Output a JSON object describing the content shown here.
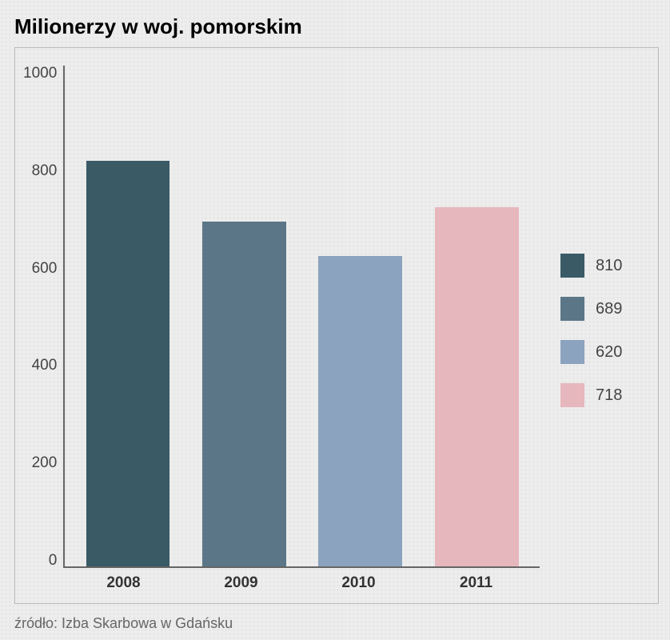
{
  "chart": {
    "type": "bar",
    "title": "Milionerzy w woj. pomorskim",
    "title_fontsize": 26,
    "categories": [
      "2008",
      "2009",
      "2010",
      "2011"
    ],
    "values": [
      810,
      689,
      620,
      718
    ],
    "bar_colors": [
      "#3a5a66",
      "#5b7687",
      "#8ba3be",
      "#e6b7bd"
    ],
    "background_color": "#ededed",
    "border_color": "#bbbbbb",
    "axis_color": "#666666",
    "ylim": [
      0,
      1000
    ],
    "ytick_step": 200,
    "yticks": [
      "1000",
      "800",
      "600",
      "400",
      "200",
      "0"
    ],
    "tick_fontsize": 19,
    "x_label_fontsize": 19,
    "x_label_fontweight": "bold",
    "legend_labels": [
      "810",
      "689",
      "620",
      "718"
    ],
    "legend_fontsize": 20,
    "bar_width_pct": 18
  },
  "source": {
    "text": "źródło: Izba Skarbowa w Gdańsku",
    "fontsize": 18,
    "color": "#666666"
  }
}
